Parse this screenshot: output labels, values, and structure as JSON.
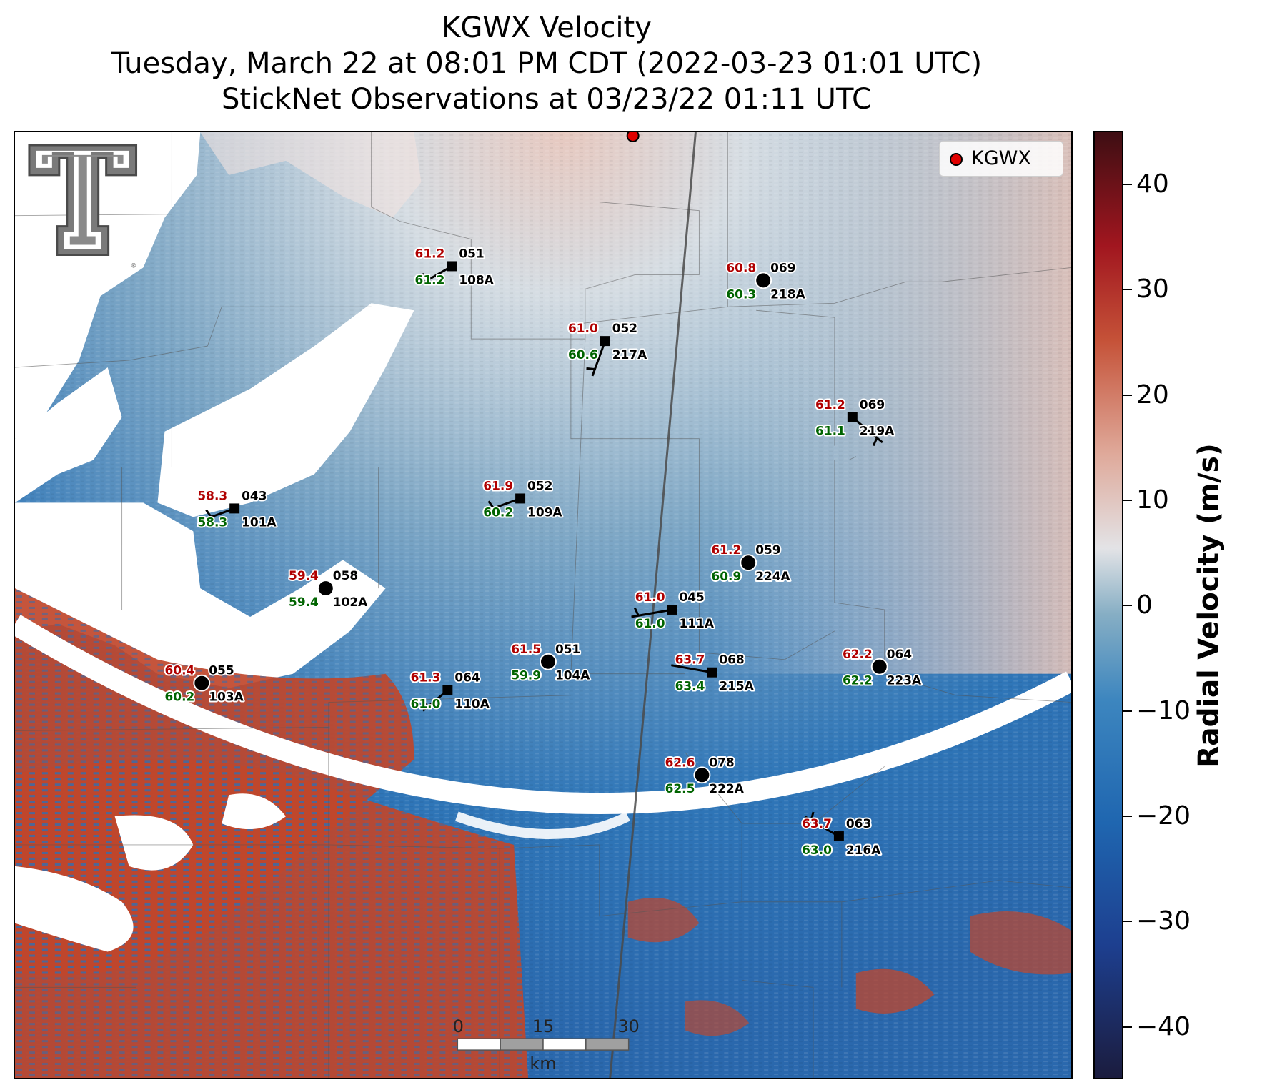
{
  "title": {
    "line1": "KGWX Velocity",
    "line2": "Tuesday, March 22 at 08:01 PM CDT (2022-03-23 01:01 UTC)",
    "line3": "StickNet Observations at 03/23/22 01:11 UTC"
  },
  "legend": {
    "label": "KGWX",
    "marker_color": "#e00000"
  },
  "colorbar": {
    "label": "Radial Velocity (m/s)",
    "ticks": [
      "40",
      "30",
      "20",
      "10",
      "0",
      "−10",
      "−20",
      "−30",
      "−40"
    ],
    "range": [
      -45,
      45
    ]
  },
  "scalebar": {
    "labels": [
      "0",
      "15",
      "30"
    ],
    "unit": "km"
  },
  "logo": "texas-tech-double-t-logo",
  "colors": {
    "inbound": "#2b6fb5",
    "outbound": "#c0462b",
    "near_zero": "#e6e6e8",
    "station_temp": "#b00000",
    "station_dew": "#006400"
  },
  "stations": [
    {
      "id": "108A",
      "temp": "61.2",
      "dew": "61.2",
      "dir": "051",
      "marker": "square"
    },
    {
      "id": "218A",
      "temp": "60.8",
      "dew": "60.3",
      "dir": "069",
      "marker": "circle"
    },
    {
      "id": "217A",
      "temp": "61.0",
      "dew": "60.6",
      "dir": "052",
      "marker": "square"
    },
    {
      "id": "219A",
      "temp": "61.2",
      "dew": "61.1",
      "dir": "069",
      "marker": "square"
    },
    {
      "id": "101A",
      "temp": "58.3",
      "dew": "58.3",
      "dir": "043",
      "marker": "square"
    },
    {
      "id": "109A",
      "temp": "61.9",
      "dew": "60.2",
      "dir": "052",
      "marker": "square"
    },
    {
      "id": "224A",
      "temp": "61.2",
      "dew": "60.9",
      "dir": "059",
      "marker": "circle"
    },
    {
      "id": "102A",
      "temp": "59.4",
      "dew": "59.4",
      "dir": "058",
      "marker": "circle"
    },
    {
      "id": "111A",
      "temp": "61.0",
      "dew": "61.0",
      "dir": "045",
      "marker": "square"
    },
    {
      "id": "104A",
      "temp": "61.5",
      "dew": "59.9",
      "dir": "051",
      "marker": "circle"
    },
    {
      "id": "215A",
      "temp": "63.7",
      "dew": "63.4",
      "dir": "068",
      "marker": "square"
    },
    {
      "id": "223A",
      "temp": "62.2",
      "dew": "62.2",
      "dir": "064",
      "marker": "circle"
    },
    {
      "id": "103A",
      "temp": "60.4",
      "dew": "60.2",
      "dir": "055",
      "marker": "circle"
    },
    {
      "id": "110A",
      "temp": "61.3",
      "dew": "61.0",
      "dir": "064",
      "marker": "square"
    },
    {
      "id": "222A",
      "temp": "62.6",
      "dew": "62.5",
      "dir": "078",
      "marker": "circle"
    },
    {
      "id": "216A",
      "temp": "63.7",
      "dew": "63.0",
      "dir": "063",
      "marker": "square"
    }
  ]
}
